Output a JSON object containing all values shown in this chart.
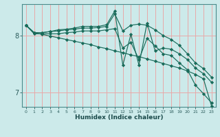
{
  "xlabel": "Humidex (Indice chaleur)",
  "bg_color": "#cceaea",
  "grid_color": "#e8a8a8",
  "line_color": "#1a6b5a",
  "xlim": [
    -0.5,
    23.5
  ],
  "ylim": [
    6.75,
    8.55
  ],
  "yticks": [
    7,
    8
  ],
  "xticks": [
    0,
    1,
    2,
    3,
    4,
    5,
    6,
    7,
    8,
    9,
    10,
    11,
    12,
    13,
    14,
    15,
    16,
    17,
    18,
    19,
    20,
    21,
    22,
    23
  ],
  "series": [
    {
      "x": [
        0,
        1,
        2,
        3,
        4,
        5,
        6,
        7,
        8,
        9,
        10,
        11,
        12,
        13,
        14,
        15,
        16,
        17,
        18,
        19,
        20,
        21,
        22,
        23
      ],
      "y": [
        8.18,
        8.05,
        8.02,
        7.99,
        7.96,
        7.93,
        7.9,
        7.87,
        7.84,
        7.8,
        7.77,
        7.73,
        7.7,
        7.66,
        7.63,
        7.59,
        7.55,
        7.51,
        7.47,
        7.43,
        7.38,
        7.32,
        7.24,
        6.76
      ]
    },
    {
      "x": [
        0,
        1,
        2,
        3,
        4,
        5,
        6,
        7,
        8,
        9,
        10,
        11,
        12,
        13,
        14,
        15,
        16,
        17,
        18,
        19,
        20,
        21,
        22,
        23
      ],
      "y": [
        8.18,
        8.03,
        8.03,
        8.03,
        8.03,
        8.05,
        8.06,
        8.08,
        8.08,
        8.08,
        8.1,
        8.12,
        7.78,
        7.88,
        7.58,
        7.95,
        7.82,
        7.68,
        7.65,
        7.52,
        7.4,
        7.13,
        6.98,
        6.82
      ]
    },
    {
      "x": [
        0,
        1,
        2,
        3,
        4,
        5,
        6,
        7,
        8,
        9,
        10,
        11,
        12,
        13,
        14,
        15,
        16,
        17,
        18,
        19,
        20,
        21,
        22,
        23
      ],
      "y": [
        8.18,
        8.05,
        8.05,
        8.07,
        8.08,
        8.1,
        8.11,
        8.13,
        8.13,
        8.14,
        8.16,
        8.38,
        8.08,
        8.18,
        8.2,
        8.18,
        8.1,
        8.0,
        7.93,
        7.83,
        7.68,
        7.52,
        7.42,
        7.27
      ]
    },
    {
      "x": [
        0,
        1,
        2,
        3,
        4,
        5,
        6,
        7,
        8,
        9,
        10,
        11,
        12,
        13,
        14,
        15,
        16,
        17,
        18,
        19,
        20,
        21,
        22,
        23
      ],
      "y": [
        8.18,
        8.05,
        8.05,
        8.07,
        8.1,
        8.11,
        8.13,
        8.16,
        8.16,
        8.16,
        8.19,
        8.43,
        7.48,
        8.02,
        7.48,
        8.22,
        7.73,
        7.78,
        7.76,
        7.68,
        7.58,
        7.43,
        7.33,
        7.18
      ]
    }
  ]
}
